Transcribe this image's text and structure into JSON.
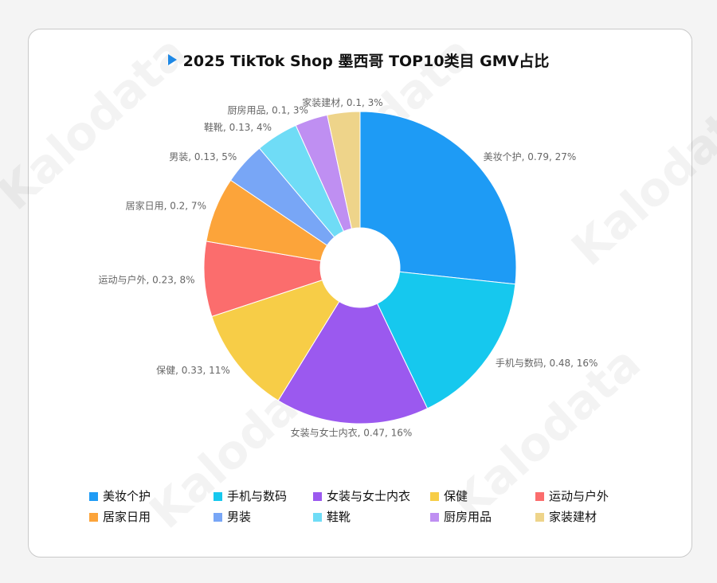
{
  "chart_data": {
    "type": "pie",
    "style": "donut",
    "title": "2025 TikTok Shop 墨西哥 TOP10类目 GMV占比",
    "slices": [
      {
        "label": "美妆个护",
        "value": 0.79,
        "pct": "27%",
        "color": "#1e9bf5"
      },
      {
        "label": "手机与数码",
        "value": 0.48,
        "pct": "16%",
        "color": "#16c8ee"
      },
      {
        "label": "女装与女士内衣",
        "value": 0.47,
        "pct": "16%",
        "color": "#9b59ef"
      },
      {
        "label": "保健",
        "value": 0.33,
        "pct": "11%",
        "color": "#f7cd47"
      },
      {
        "label": "运动与户外",
        "value": 0.23,
        "pct": "8%",
        "color": "#fb6d6d"
      },
      {
        "label": "居家日用",
        "value": 0.2,
        "pct": "7%",
        "color": "#fca43a"
      },
      {
        "label": "男装",
        "value": 0.13,
        "pct": "5%",
        "color": "#78a6f6"
      },
      {
        "label": "鞋靴",
        "value": 0.13,
        "pct": "4%",
        "color": "#6fdcf6"
      },
      {
        "label": "厨房用品",
        "value": 0.1,
        "pct": "3%",
        "color": "#bf8ff2"
      },
      {
        "label": "家装建材",
        "value": 0.1,
        "pct": "3%",
        "color": "#eed48a"
      }
    ],
    "legend_position": "bottom"
  },
  "watermark": "Kalodata"
}
